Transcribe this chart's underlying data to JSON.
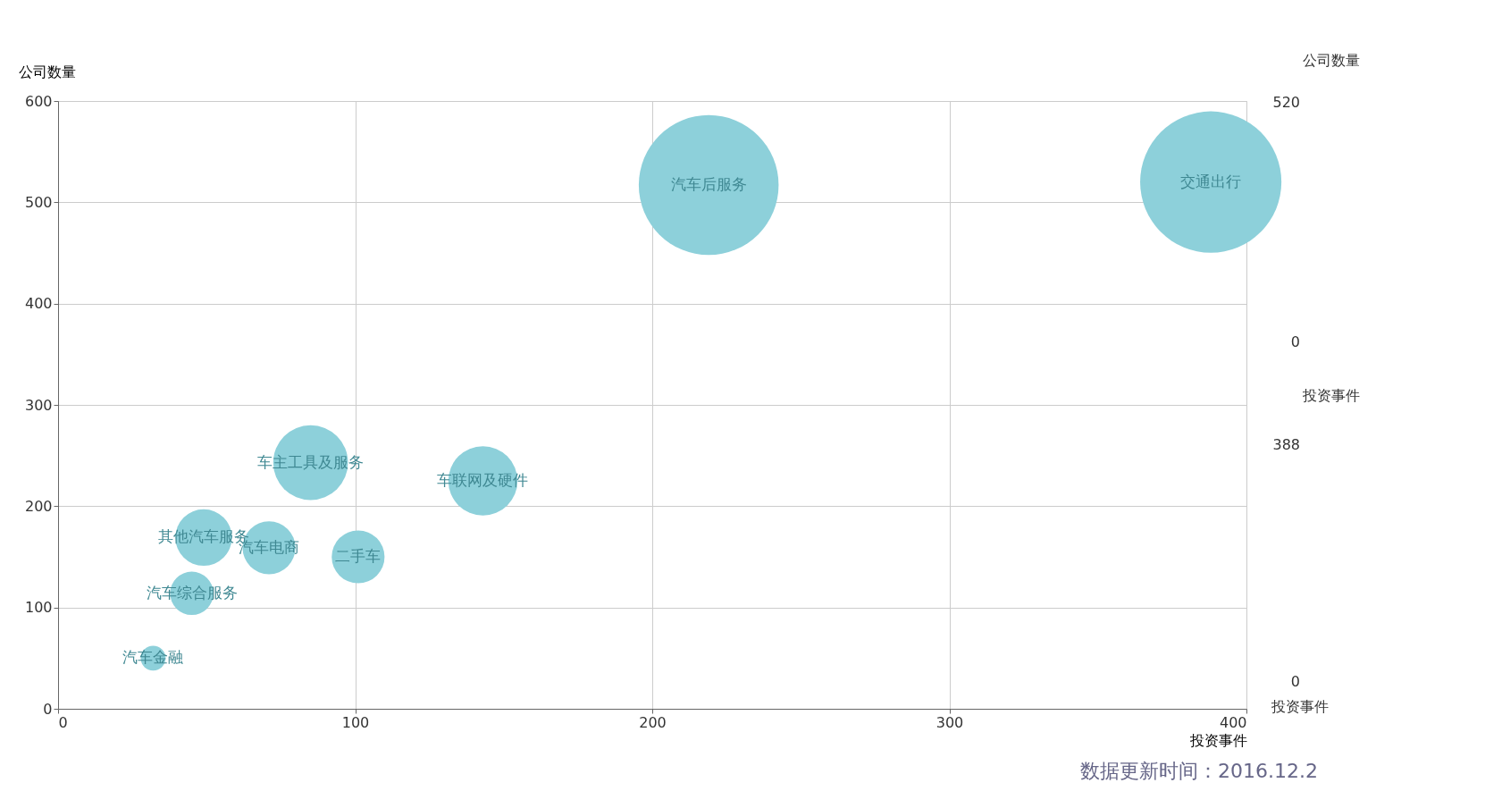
{
  "chart_data": {
    "type": "bubble",
    "xlabel": "投资事件",
    "ylabel": "公司数量",
    "xlim": [
      0,
      400
    ],
    "xticks": [
      0,
      100,
      200,
      300,
      400
    ],
    "ylim": [
      0,
      600
    ],
    "yticks": [
      0,
      100,
      200,
      300,
      400,
      500,
      600
    ],
    "grid": true,
    "series": [
      {
        "color": "#8dd0da",
        "x": [
          388,
          219,
          85,
          143,
          49,
          71,
          101,
          45,
          32
        ],
        "values": [
          520,
          517,
          243,
          225,
          169,
          159,
          150,
          114,
          50
        ],
        "sizes": [
          1,
          0.98,
          0.28,
          0.24,
          0.16,
          0.14,
          0.14,
          0.094,
          0.031
        ]
      }
    ],
    "annotations": [
      {
        "text": "交通出行",
        "x": 388,
        "y": 520
      },
      {
        "text": "汽车后服务",
        "x": 219,
        "y": 517
      },
      {
        "text": "车主工具及服务",
        "x": 85,
        "y": 243
      },
      {
        "text": "车联网及硬件",
        "x": 143,
        "y": 225
      },
      {
        "text": "其他汽车服务",
        "x": 49,
        "y": 169
      },
      {
        "text": "汽车电商",
        "x": 71,
        "y": 159
      },
      {
        "text": "二手车",
        "x": 101,
        "y": 150
      },
      {
        "text": "汽车综合服务",
        "x": 45,
        "y": 114
      },
      {
        "text": "汽车金融",
        "x": 32,
        "y": 50
      },
      "公司数量",
      "520",
      "0",
      "投资事件",
      "388",
      "0",
      "投资事件",
      "数据更新时间：2016.12.2"
    ]
  }
}
